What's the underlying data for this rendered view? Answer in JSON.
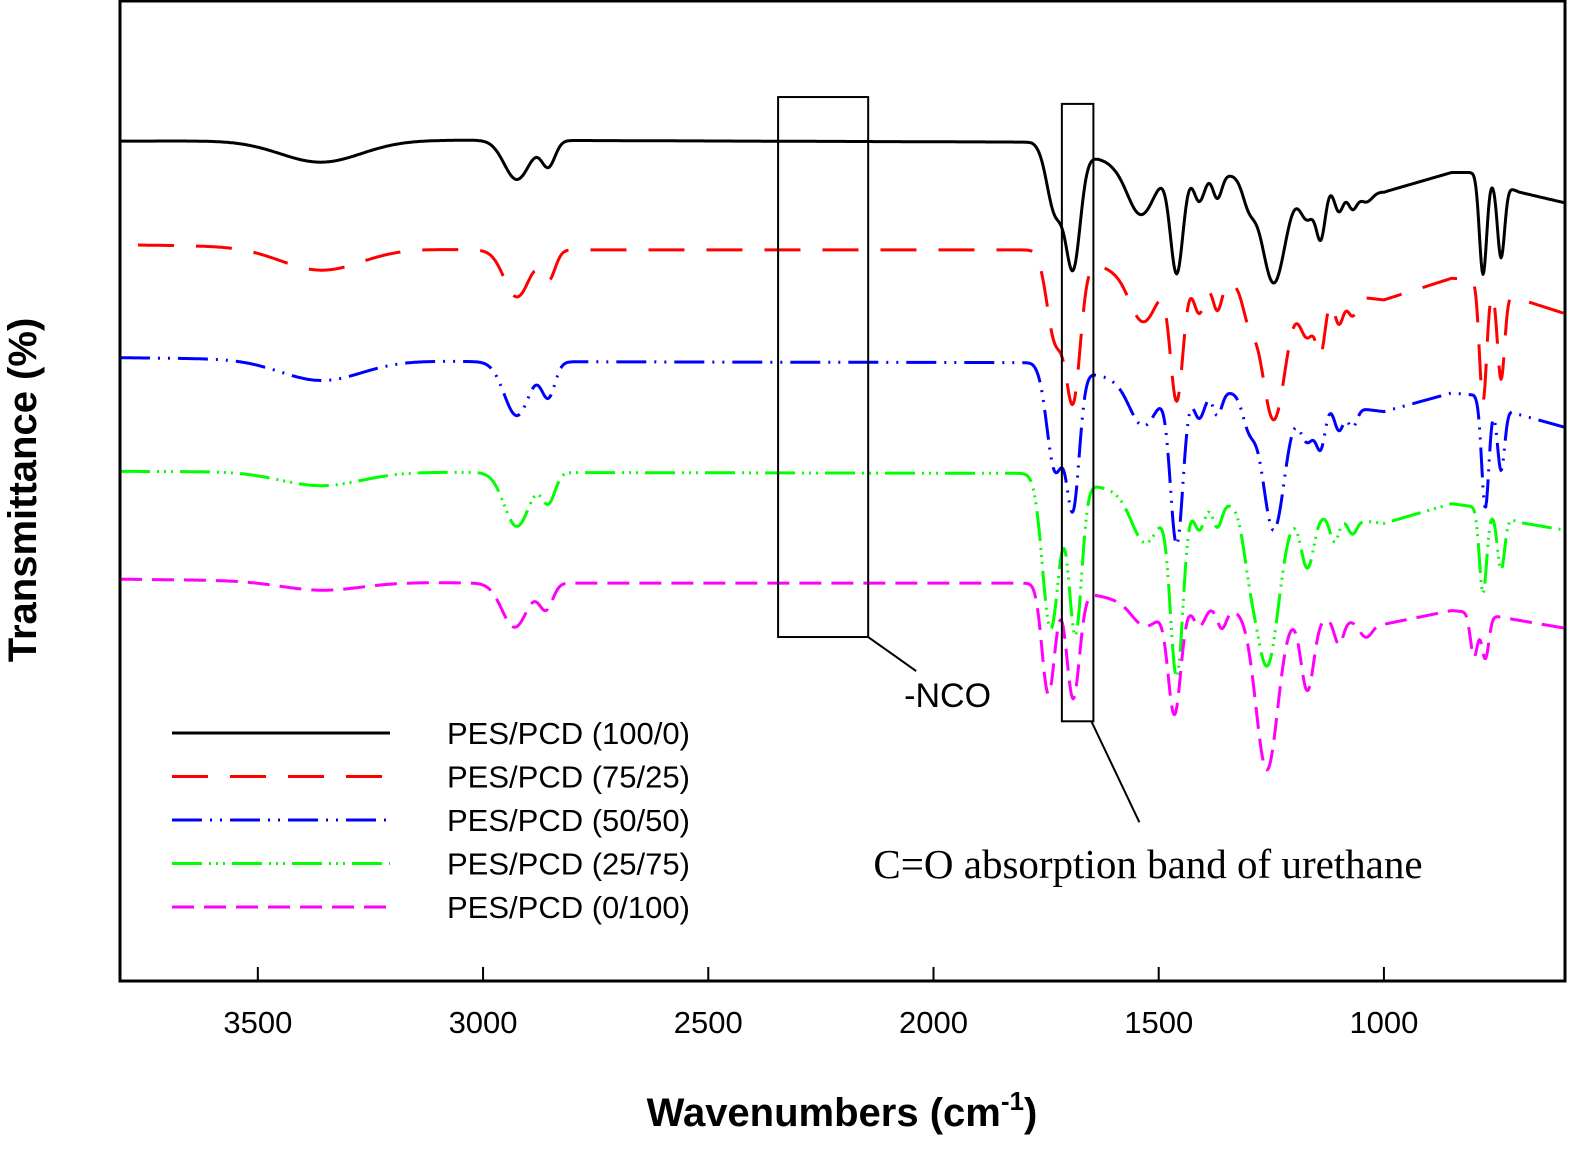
{
  "chart_data": {
    "type": "line",
    "title": "",
    "xlabel": "Wavenumbers (cm",
    "xlabel_sup": "-1",
    "xlabel_close": ")",
    "ylabel": "Transmittance (%)",
    "xlim": [
      3806,
      598
    ],
    "x_reversed": true,
    "ylim": [
      0,
      100
    ],
    "y_ticks_shown": false,
    "grid": false,
    "x_ticks": [
      3500,
      3000,
      2500,
      2000,
      1500,
      1000
    ],
    "x_tick_labels": [
      "3500",
      "3000",
      "2500",
      "2000",
      "1500",
      "1000"
    ],
    "legend_position": "bottom-left",
    "series": [
      {
        "name": "PES/PCD (100/0)",
        "color": "#000000",
        "dash": "solid",
        "x_start": 3806,
        "baseline": [
          [
            3806,
            85.7
          ],
          [
            3000,
            85.8
          ],
          [
            1780,
            85.6
          ],
          [
            1600,
            83.5
          ],
          [
            1000,
            80.5
          ],
          [
            850,
            82.5
          ],
          [
            800,
            82.5
          ],
          [
            700,
            80.5
          ],
          [
            598,
            79.4
          ]
        ],
        "dips": [
          [
            3360,
            90,
            2.2
          ],
          [
            2925,
            28,
            4.0
          ],
          [
            2855,
            15,
            2.6
          ],
          [
            1730,
            18,
            6.5
          ],
          [
            1690,
            16,
            11.5
          ],
          [
            1540,
            30,
            5.0
          ],
          [
            1460,
            14,
            10.5
          ],
          [
            1410,
            12,
            3.0
          ],
          [
            1370,
            10,
            2.5
          ],
          [
            1300,
            14,
            2.5
          ],
          [
            1245,
            26,
            10.5
          ],
          [
            1170,
            16,
            3.5
          ],
          [
            1140,
            10,
            5.0
          ],
          [
            1100,
            10,
            2.5
          ],
          [
            1070,
            10,
            2.0
          ],
          [
            1040,
            14,
            1.2
          ],
          [
            780,
            8,
            10.0
          ],
          [
            740,
            8,
            7.5
          ]
        ]
      },
      {
        "name": "PES/PCD (75/25)",
        "color": "#ff0000",
        "dash": "long-dash",
        "x_start": 3766,
        "baseline": [
          [
            3766,
            75.1
          ],
          [
            3000,
            74.6
          ],
          [
            1780,
            74.6
          ],
          [
            1600,
            72.6
          ],
          [
            1000,
            69.5
          ],
          [
            850,
            71.7
          ],
          [
            800,
            71.6
          ],
          [
            700,
            69.6
          ],
          [
            598,
            68.1
          ]
        ],
        "dips": [
          [
            3360,
            90,
            2.3
          ],
          [
            2925,
            28,
            4.8
          ],
          [
            2855,
            15,
            3.0
          ],
          [
            1730,
            18,
            8.5
          ],
          [
            1690,
            16,
            14.0
          ],
          [
            1535,
            30,
            5.0
          ],
          [
            1460,
            14,
            12.5
          ],
          [
            1410,
            12,
            3.5
          ],
          [
            1370,
            10,
            3.0
          ],
          [
            1300,
            14,
            3.0
          ],
          [
            1245,
            26,
            13.5
          ],
          [
            1170,
            16,
            4.5
          ],
          [
            1140,
            10,
            5.5
          ],
          [
            1100,
            10,
            3.0
          ],
          [
            1070,
            10,
            2.0
          ],
          [
            780,
            8,
            12.0
          ],
          [
            740,
            8,
            9.0
          ]
        ]
      },
      {
        "name": "PES/PCD (50/50)",
        "color": "#0000ff",
        "dash": "dash-dot",
        "x_start": 3806,
        "baseline": [
          [
            3806,
            63.6
          ],
          [
            3000,
            63.2
          ],
          [
            1780,
            63.1
          ],
          [
            1600,
            61.5
          ],
          [
            1000,
            58.1
          ],
          [
            850,
            60.0
          ],
          [
            800,
            59.8
          ],
          [
            700,
            57.8
          ],
          [
            598,
            56.5
          ]
        ],
        "dips": [
          [
            3360,
            90,
            2.1
          ],
          [
            2925,
            28,
            5.5
          ],
          [
            2855,
            15,
            3.5
          ],
          [
            1730,
            18,
            10.5
          ],
          [
            1690,
            14,
            13.5
          ],
          [
            1535,
            30,
            4.5
          ],
          [
            1460,
            14,
            16.0
          ],
          [
            1410,
            12,
            3.0
          ],
          [
            1370,
            10,
            2.5
          ],
          [
            1300,
            14,
            3.0
          ],
          [
            1245,
            24,
            13.5
          ],
          [
            1170,
            16,
            4.0
          ],
          [
            1140,
            10,
            4.0
          ],
          [
            1100,
            10,
            2.5
          ],
          [
            1070,
            10,
            2.0
          ],
          [
            775,
            8,
            11.0
          ],
          [
            740,
            8,
            6.5
          ]
        ]
      },
      {
        "name": "PES/PCD (25/75)",
        "color": "#00ff00",
        "dash": "dash-dot-dot",
        "x_start": 3806,
        "baseline": [
          [
            3806,
            52.0
          ],
          [
            3000,
            51.9
          ],
          [
            1780,
            51.8
          ],
          [
            1600,
            50.1
          ],
          [
            1000,
            46.7
          ],
          [
            850,
            48.7
          ],
          [
            800,
            48.4
          ],
          [
            700,
            46.8
          ],
          [
            598,
            46.0
          ]
        ],
        "dips": [
          [
            3360,
            90,
            1.4
          ],
          [
            2925,
            28,
            5.5
          ],
          [
            2855,
            15,
            3.0
          ],
          [
            1740,
            18,
            15.5
          ],
          [
            1685,
            14,
            15.5
          ],
          [
            1530,
            30,
            5.0
          ],
          [
            1460,
            14,
            18.0
          ],
          [
            1410,
            12,
            3.0
          ],
          [
            1370,
            10,
            2.5
          ],
          [
            1300,
            14,
            3.0
          ],
          [
            1260,
            26,
            16.0
          ],
          [
            1170,
            14,
            5.5
          ],
          [
            1110,
            10,
            2.5
          ],
          [
            1070,
            10,
            1.5
          ],
          [
            780,
            8,
            8.5
          ],
          [
            740,
            8,
            5.5
          ]
        ]
      },
      {
        "name": "PES/PCD (0/100)",
        "color": "#ff00ff",
        "dash": "short-dash",
        "x_start": 3806,
        "baseline": [
          [
            3806,
            41.0
          ],
          [
            3000,
            40.6
          ],
          [
            1780,
            40.6
          ],
          [
            1600,
            39.0
          ],
          [
            1000,
            36.4
          ],
          [
            850,
            37.8
          ],
          [
            800,
            37.6
          ],
          [
            700,
            36.8
          ],
          [
            598,
            36.0
          ]
        ],
        "dips": [
          [
            3360,
            90,
            0.9
          ],
          [
            2930,
            28,
            4.5
          ],
          [
            2860,
            15,
            2.6
          ],
          [
            1745,
            14,
            11.0
          ],
          [
            1690,
            14,
            11.0
          ],
          [
            1530,
            30,
            2.5
          ],
          [
            1465,
            14,
            11.0
          ],
          [
            1410,
            12,
            2.0
          ],
          [
            1360,
            10,
            2.0
          ],
          [
            1260,
            24,
            16.0
          ],
          [
            1170,
            14,
            7.5
          ],
          [
            1100,
            10,
            2.5
          ],
          [
            1040,
            14,
            1.5
          ],
          [
            800,
            8,
            4.5
          ],
          [
            775,
            8,
            4.5
          ]
        ]
      }
    ],
    "annotations": [
      {
        "text": "-NCO",
        "box_x_range": [
          2345,
          2145
        ],
        "box_y_range": [
          90.2,
          35.1
        ],
        "style": "sans"
      },
      {
        "text": "C=O absorption band of urethane",
        "box_x_range": [
          1715,
          1645
        ],
        "box_y_range": [
          89.5,
          26.5
        ],
        "style": "serif"
      }
    ]
  }
}
